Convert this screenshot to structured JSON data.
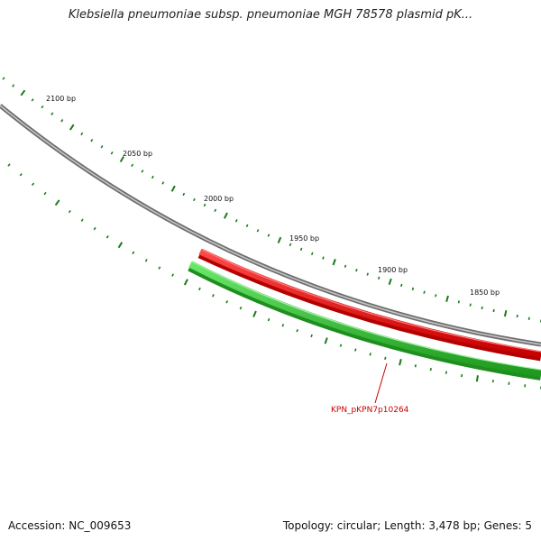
{
  "title": "Klebsiella pneumoniae subsp. pneumoniae MGH 78578 plasmid pK...",
  "ruler": {
    "labels": [
      {
        "bp": 2100,
        "text": "2100 bp"
      },
      {
        "bp": 2050,
        "text": "2050 bp"
      },
      {
        "bp": 2000,
        "text": "2000 bp"
      },
      {
        "bp": 1950,
        "text": "1950 bp"
      },
      {
        "bp": 1900,
        "text": "1900 bp"
      },
      {
        "bp": 1850,
        "text": "1850 bp"
      }
    ]
  },
  "genes": [
    {
      "id": "KPN_pKPN7p10264",
      "strand": "+",
      "color": "#ff1a1a",
      "label": "KPN_pKPN7p10264",
      "label_color": "#cc0000"
    },
    {
      "id": "cds-reverse",
      "strand": "-",
      "color": "#3dd13d"
    }
  ],
  "colors": {
    "backbone": "#8a8a8a",
    "ticks": "#1a7a1a"
  },
  "footer": {
    "accession": "Accession: NC_009653",
    "summary": "Topology: circular; Length: 3,478 bp; Genes: 5"
  }
}
